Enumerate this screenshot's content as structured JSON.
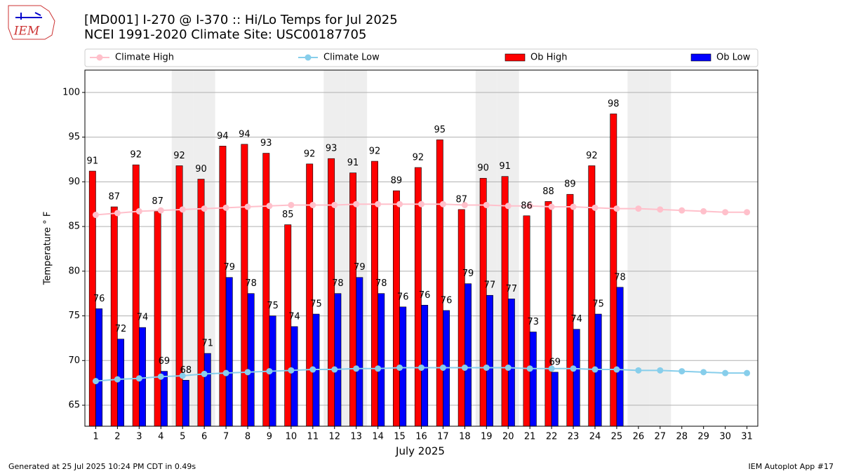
{
  "chart_data": {
    "type": "bar",
    "title": "[MD001] I-270 @ I-370 :: Hi/Lo Temps for Jul 2025",
    "subtitle": "NCEI 1991-2020 Climate Site: USC00187705",
    "logo_text": "IEM",
    "x_label": "July 2025",
    "y_label": "Temperature ° F",
    "footer_left": "Generated at 25 Jul 2025 10:24 PM CDT in 0.49s",
    "footer_right": "IEM Autoplot App #17",
    "categories": [
      "1",
      "2",
      "3",
      "4",
      "5",
      "6",
      "7",
      "8",
      "9",
      "10",
      "11",
      "12",
      "13",
      "14",
      "15",
      "16",
      "17",
      "18",
      "19",
      "20",
      "21",
      "22",
      "23",
      "24",
      "25",
      "26",
      "27",
      "28",
      "29",
      "30",
      "31"
    ],
    "shaded_categories": [
      "5",
      "6",
      "12",
      "13",
      "19",
      "20",
      "26",
      "27"
    ],
    "series": [
      {
        "name": "Climate High",
        "kind": "line",
        "color": "#ffc0cb",
        "values": [
          86.3,
          86.5,
          86.7,
          86.8,
          86.9,
          87.0,
          87.1,
          87.2,
          87.3,
          87.4,
          87.4,
          87.4,
          87.5,
          87.5,
          87.5,
          87.5,
          87.5,
          87.4,
          87.4,
          87.3,
          87.3,
          87.2,
          87.2,
          87.1,
          87.0,
          87.0,
          86.9,
          86.8,
          86.7,
          86.6,
          86.6
        ]
      },
      {
        "name": "Climate Low",
        "kind": "line",
        "color": "#87ceeb",
        "values": [
          67.7,
          67.9,
          68.0,
          68.2,
          68.3,
          68.5,
          68.6,
          68.7,
          68.8,
          68.9,
          69.0,
          69.0,
          69.1,
          69.1,
          69.2,
          69.2,
          69.2,
          69.2,
          69.2,
          69.2,
          69.1,
          69.1,
          69.1,
          69.0,
          69.0,
          68.9,
          68.9,
          68.8,
          68.7,
          68.6,
          68.6
        ]
      },
      {
        "name": "Ob High",
        "kind": "bar",
        "color": "#ff0000",
        "values": [
          91.2,
          87.2,
          91.9,
          86.7,
          91.8,
          90.3,
          94.0,
          94.2,
          93.2,
          85.2,
          92.0,
          92.6,
          91.0,
          92.3,
          89.0,
          91.6,
          94.7,
          86.9,
          90.4,
          90.6,
          86.2,
          87.8,
          88.6,
          91.8,
          97.6,
          null,
          null,
          null,
          null,
          null,
          null
        ],
        "value_labels": [
          "91",
          "87",
          "92",
          "87",
          "92",
          "90",
          "94",
          "94",
          "93",
          "85",
          "92",
          "93",
          "91",
          "92",
          "89",
          "92",
          "95",
          "87",
          "90",
          "91",
          "86",
          "88",
          "89",
          "92",
          "98",
          null,
          null,
          null,
          null,
          null,
          null
        ]
      },
      {
        "name": "Ob Low",
        "kind": "bar",
        "color": "#0000ff",
        "values": [
          75.8,
          72.4,
          73.7,
          68.8,
          67.8,
          70.8,
          79.3,
          77.5,
          75.0,
          73.8,
          75.2,
          77.5,
          79.3,
          77.5,
          76.0,
          76.2,
          75.6,
          78.6,
          77.3,
          76.9,
          73.2,
          68.7,
          73.5,
          75.2,
          78.2,
          null,
          null,
          null,
          null,
          null,
          null
        ],
        "value_labels": [
          "76",
          "72",
          "74",
          "69",
          "68",
          "71",
          "79",
          "78",
          "75",
          "74",
          "75",
          "78",
          "79",
          "78",
          "76",
          "76",
          "76",
          "79",
          "77",
          "77",
          "73",
          "69",
          "74",
          "75",
          "78",
          null,
          null,
          null,
          null,
          null,
          null
        ]
      }
    ],
    "ylim": [
      62.65,
      102.5
    ],
    "yticks": [
      65,
      70,
      75,
      80,
      85,
      90,
      95,
      100
    ],
    "grid": true,
    "legend": "top"
  }
}
